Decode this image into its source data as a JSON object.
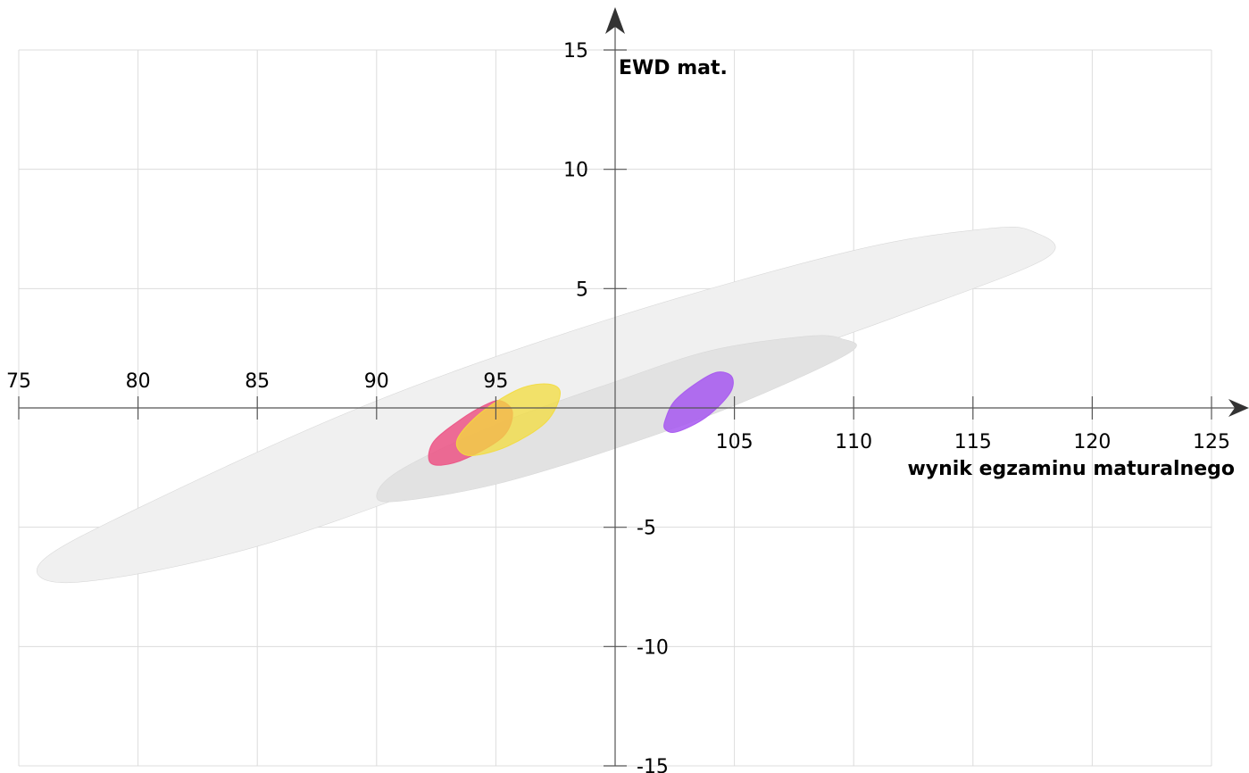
{
  "chart_data": {
    "type": "scatter",
    "xlabel": "wynik egzaminu maturalnego",
    "ylabel": "EWD mat.",
    "xlim": [
      75,
      125
    ],
    "ylim": [
      -15,
      15
    ],
    "xticks": [
      75,
      80,
      85,
      90,
      95,
      105,
      110,
      115,
      120,
      125
    ],
    "yticks": [
      15,
      10,
      5,
      -5,
      -10,
      -15
    ],
    "grid": true,
    "background_ellipses": [
      {
        "name": "outer",
        "color": "#f0f0f0",
        "opacity": 1,
        "points": [
          [
            75.9,
            -6.5
          ],
          [
            77.5,
            -7.3
          ],
          [
            85,
            -5.8
          ],
          [
            95,
            -2.3
          ],
          [
            105,
            1.4
          ],
          [
            112,
            3.9
          ],
          [
            118.1,
            6.3
          ],
          [
            117.5,
            7.4
          ],
          [
            115.5,
            7.5
          ],
          [
            110,
            6.6
          ],
          [
            100,
            3.8
          ],
          [
            90,
            0.3
          ],
          [
            80,
            -4.2
          ]
        ]
      },
      {
        "name": "inner",
        "color": "#e2e2e2",
        "opacity": 1,
        "points": [
          [
            90,
            -3.7
          ],
          [
            91,
            -3.9
          ],
          [
            95,
            -3.2
          ],
          [
            100,
            -1.7
          ],
          [
            105,
            0.1
          ],
          [
            109.8,
            2.3
          ],
          [
            109.5,
            2.9
          ],
          [
            108,
            3
          ],
          [
            104,
            2.4
          ],
          [
            100,
            1.1
          ],
          [
            95,
            -0.7
          ],
          [
            91,
            -2.6
          ]
        ]
      }
    ],
    "series": [
      {
        "color": "#ec5385",
        "opacity": 0.85,
        "points": [
          [
            92.2,
            -2.2
          ],
          [
            92.7,
            -2.4
          ],
          [
            93.8,
            -2.1
          ],
          [
            95.3,
            -1.2
          ],
          [
            95.7,
            -0.2
          ],
          [
            95.2,
            0.3
          ],
          [
            94.5,
            0.1
          ],
          [
            93.5,
            -0.5
          ],
          [
            92.4,
            -1.4
          ]
        ]
      },
      {
        "color": "#f3dc3c",
        "opacity": 0.75,
        "points": [
          [
            93.4,
            -1.7
          ],
          [
            94,
            -2.0
          ],
          [
            95.5,
            -1.6
          ],
          [
            97.1,
            -0.6
          ],
          [
            97.7,
            0.6
          ],
          [
            97.2,
            1.0
          ],
          [
            96,
            0.8
          ],
          [
            94.5,
            -0.1
          ],
          [
            93.5,
            -1.1
          ]
        ]
      },
      {
        "color": "#a657f0",
        "opacity": 0.85,
        "points": [
          [
            102.1,
            -0.9
          ],
          [
            102.6,
            -1.0
          ],
          [
            103.8,
            -0.4
          ],
          [
            104.8,
            0.6
          ],
          [
            104.9,
            1.3
          ],
          [
            104.3,
            1.5
          ],
          [
            103.5,
            1.1
          ],
          [
            102.5,
            0.3
          ],
          [
            102.1,
            -0.5
          ]
        ]
      }
    ],
    "axis_color": "#555555",
    "grid_color": "#dcdcdc"
  }
}
